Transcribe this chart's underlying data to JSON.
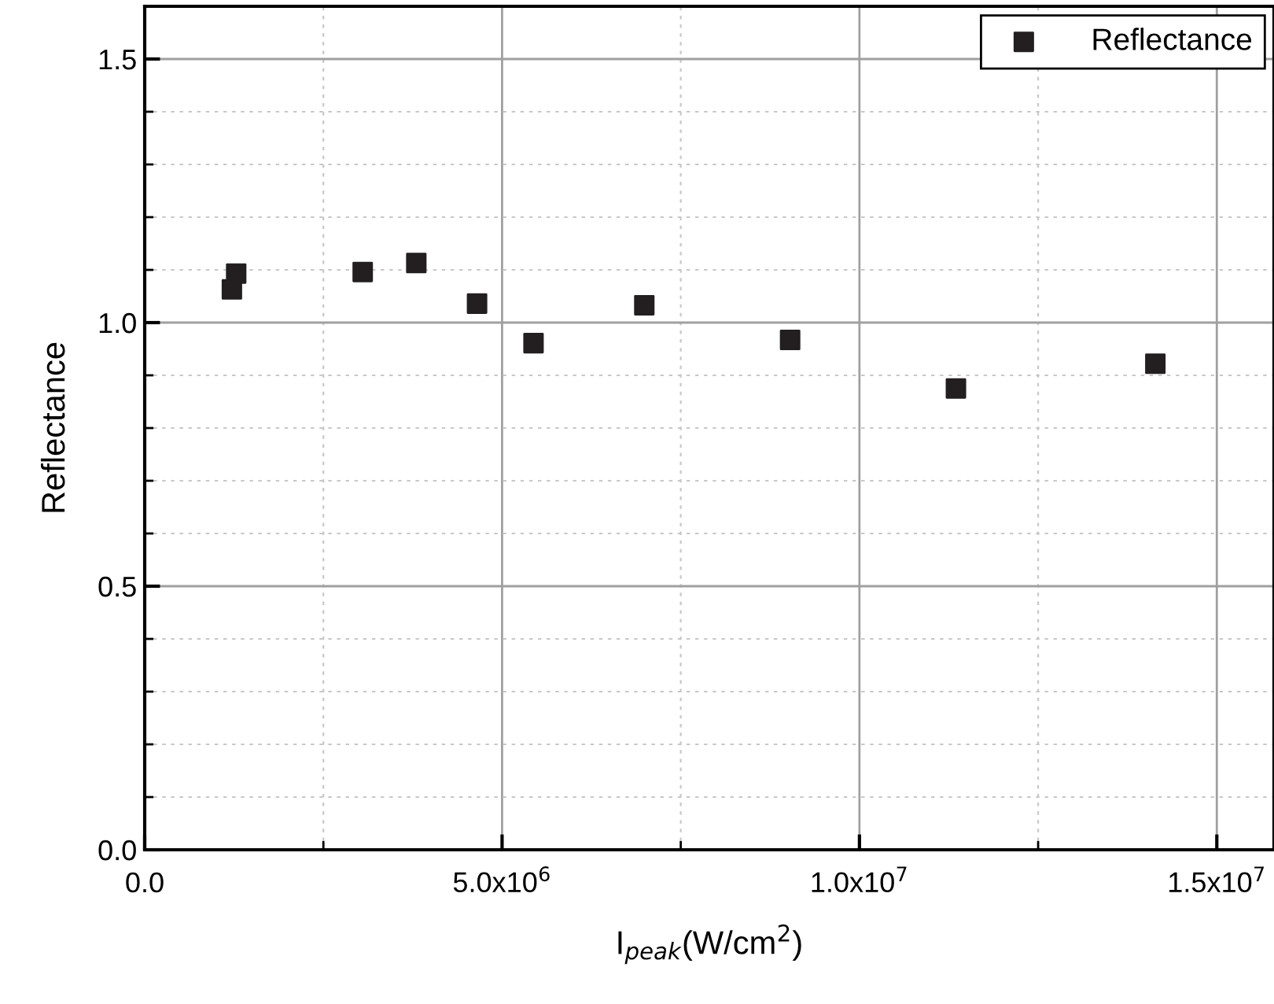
{
  "chart_data": {
    "type": "scatter",
    "xlabel": "I$_{peak}$(W/cm$^{2}$)",
    "ylabel": "Reflectance",
    "x": [
      1220000,
      1280000,
      3050000,
      3800000,
      4650000,
      5440000,
      6990000,
      9030000,
      11350000,
      14140000
    ],
    "series": [
      {
        "name": "Reflectance",
        "color": "#231f20",
        "values": [
          1.063,
          1.093,
          1.096,
          1.113,
          1.036,
          0.961,
          1.033,
          0.967,
          0.875,
          0.922
        ]
      }
    ],
    "xlim": [
      0,
      15800000
    ],
    "ylim": [
      0,
      1.6
    ],
    "xticks": [
      {
        "value": 0,
        "label": "0.0"
      },
      {
        "value": 5000000,
        "label": "5.0x10$^{6}$"
      },
      {
        "value": 10000000,
        "label": "1.0x10$^{7}$"
      },
      {
        "value": 15000000,
        "label": "1.5x10$^{7}$"
      }
    ],
    "yticks": [
      {
        "value": 0,
        "label": "0.0"
      },
      {
        "value": 0.5,
        "label": "0.5"
      },
      {
        "value": 1.0,
        "label": "1.0"
      },
      {
        "value": 1.5,
        "label": "1.5"
      }
    ],
    "grid": true,
    "legend": "top right",
    "marker": "square"
  }
}
